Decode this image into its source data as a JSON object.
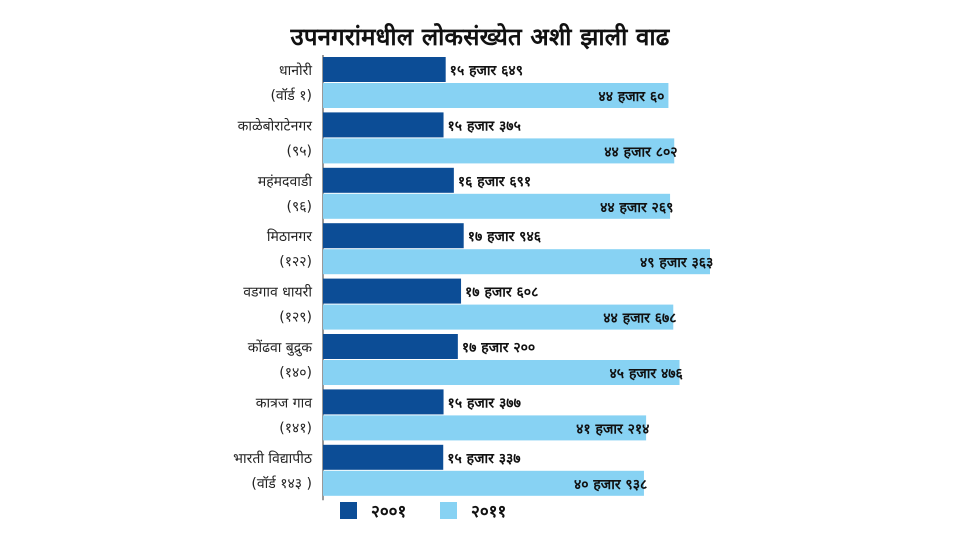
{
  "chart_data": {
    "type": "bar",
    "orientation": "horizontal",
    "title": "उपनगरांमधील लोकसंख्येत अशी झाली वाढ",
    "categories": [
      [
        "धानोरी",
        "(वॉर्ड १)"
      ],
      [
        "काळेबोराटेनगर",
        "(९५)"
      ],
      [
        "महंमदवाडी",
        "(९६)"
      ],
      [
        "मिठानगर",
        "(१२२)"
      ],
      [
        "वडगाव धायरी",
        "(१२९)"
      ],
      [
        "कोंढवा बुद्रुक",
        "(१४०)"
      ],
      [
        "कात्रज गाव",
        "(१४१)"
      ],
      [
        "भारती विद्यापीठ",
        "(वॉर्ड १४३ )"
      ]
    ],
    "series": [
      {
        "name": "२००१",
        "color": "#0c4d96",
        "values": [
          15649,
          15375,
          16691,
          17946,
          17608,
          17200,
          15377,
          15337
        ],
        "labels": [
          "१५ हजार ६४९",
          "१५ हजार ३७५",
          "१६ हजार ६९१",
          "१७ हजार ९४६",
          "१७ हजार ६०८",
          "१७ हजार २००",
          "१५ हजार ३७७",
          "१५ हजार ३३७"
        ]
      },
      {
        "name": "२०११",
        "color": "#87d2f3",
        "values": [
          44060,
          44802,
          44269,
          49363,
          44678,
          45476,
          41214,
          40938
        ],
        "labels": [
          "४४ हजार ६०",
          "४४ हजार ८०२",
          "४४ हजार २६९",
          "४९ हजार ३६३",
          "४४ हजार ६७८",
          "४५ हजार ४७६",
          "४१ हजार २१४",
          "४० हजार ९३८"
        ]
      }
    ],
    "legend_position": "bottom",
    "grid": false
  }
}
